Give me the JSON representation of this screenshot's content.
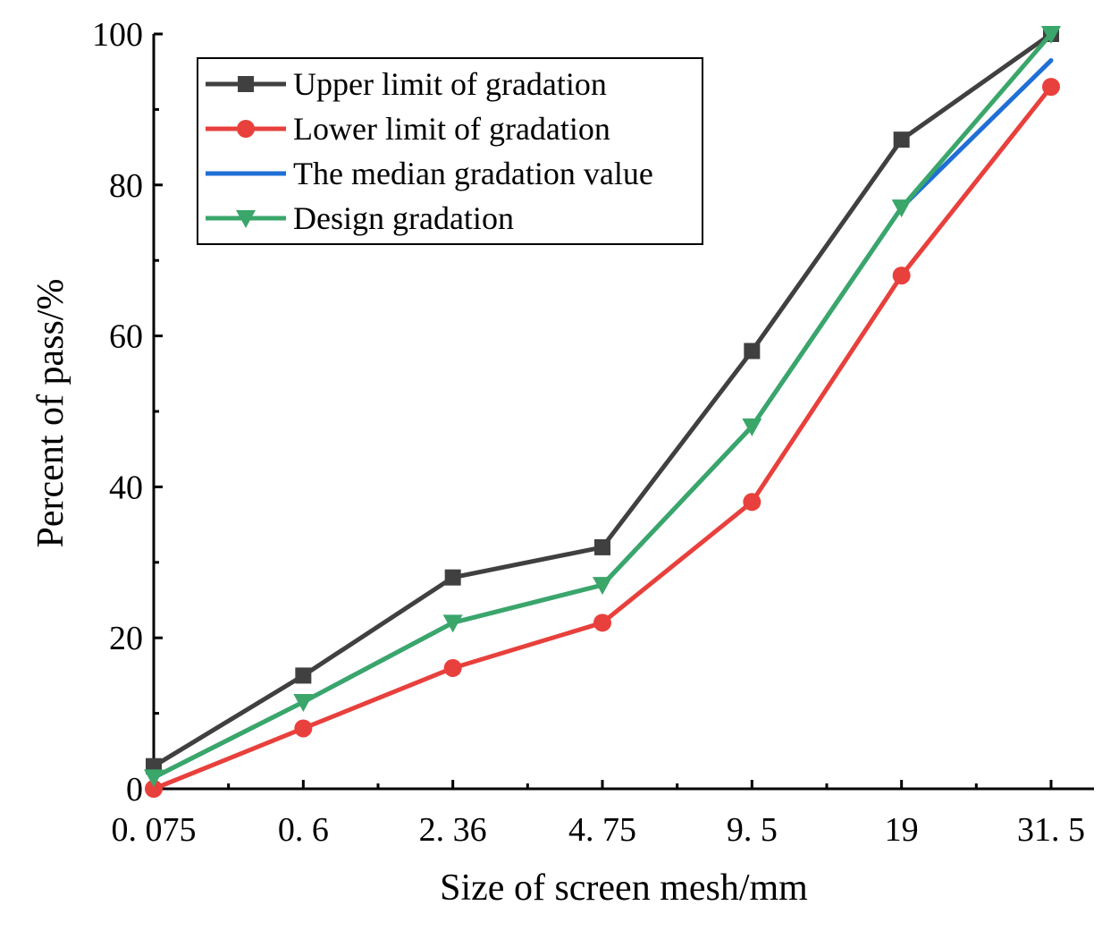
{
  "chart_data": {
    "type": "line",
    "title": "",
    "xlabel": "Size of screen mesh/mm",
    "ylabel": "Percent of pass/%",
    "categories": [
      "0.075",
      "0.6",
      "2.36",
      "4.75",
      "9.5",
      "19",
      "31.5"
    ],
    "category_labels": [
      "0. 075",
      "0. 6",
      "2. 36",
      "4. 75",
      "9. 5",
      "19",
      "31. 5"
    ],
    "ylim": [
      0,
      100
    ],
    "yticks": [
      0,
      20,
      40,
      60,
      80,
      100
    ],
    "grid": false,
    "legend_position": "top-left",
    "series": [
      {
        "name": "Upper limit of gradation",
        "color": "#404040",
        "marker": "square",
        "values": [
          3,
          15,
          28,
          32,
          58,
          86,
          100
        ]
      },
      {
        "name": "Lower limit of gradation",
        "color": "#e8403c",
        "marker": "circle",
        "values": [
          0,
          8,
          16,
          22,
          38,
          68,
          93
        ]
      },
      {
        "name": "The median gradation value",
        "color": "#1f6fd6",
        "marker": "none",
        "values": [
          1.5,
          11.5,
          22,
          27,
          48,
          77,
          96.5
        ]
      },
      {
        "name": "Design gradation",
        "color": "#3aa66a",
        "marker": "triangle-down",
        "values": [
          1.5,
          11.5,
          22,
          27,
          48,
          77,
          100
        ]
      }
    ]
  }
}
